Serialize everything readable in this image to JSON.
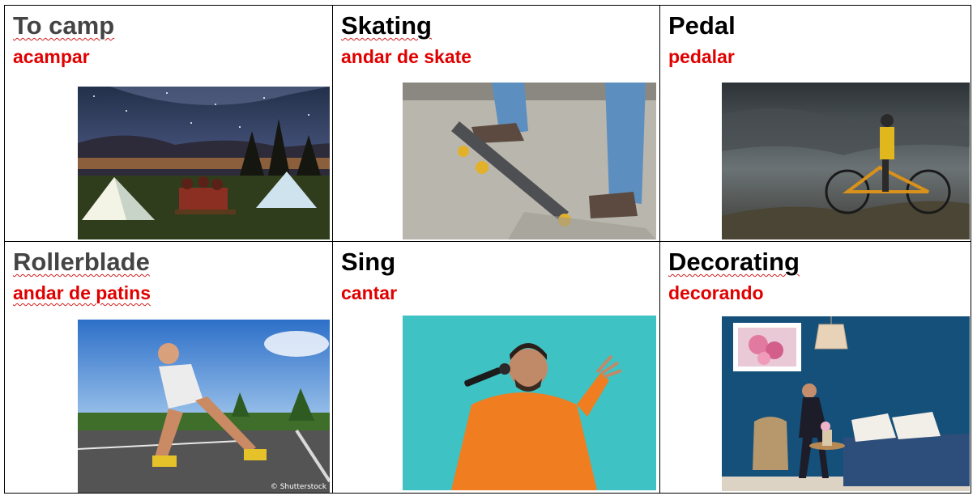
{
  "colors": {
    "translation": "#e00000",
    "border": "#000000"
  },
  "cards": [
    {
      "title": "To camp",
      "translation": "acampar"
    },
    {
      "title": "Skating",
      "translation": "andar de skate"
    },
    {
      "title": "Pedal",
      "translation": "pedalar"
    },
    {
      "title": "Rollerblade",
      "translation": "andar de patins"
    },
    {
      "title": "Sing",
      "translation": "cantar"
    },
    {
      "title": "Decorating",
      "translation": "decorando"
    }
  ],
  "watermark": "© Shutterstock"
}
